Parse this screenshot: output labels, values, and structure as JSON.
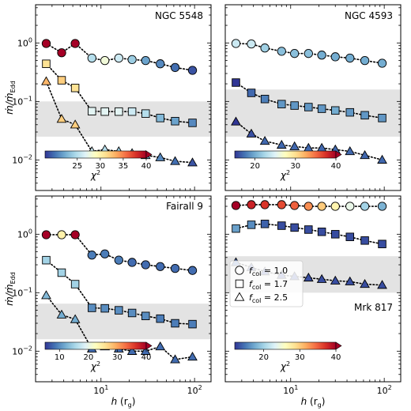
{
  "chart_data": {
    "type": "scatter",
    "shared": {
      "xlabel": "h (r_g)",
      "xlabel_main": "h",
      "xlabel_unit": "(r",
      "xlabel_sub": "g",
      "xlabel_close": ")",
      "ylabel_main": "ṁ/ṁ",
      "ylabel_sub": "Edd",
      "xscale": "log",
      "yscale": "log",
      "xlim": [
        2.0,
        150
      ],
      "ylim": [
        0.003,
        4.5
      ],
      "x_ticks": [
        {
          "value": 10,
          "label": "10",
          "sup": "1"
        },
        {
          "value": 100,
          "label": "10",
          "sup": "2"
        }
      ],
      "y_ticks": [
        {
          "value": 0.01,
          "label": "10",
          "sup": "−2"
        },
        {
          "value": 0.1,
          "label": "10",
          "sup": "−1"
        },
        {
          "value": 1,
          "label": "10",
          "sup": "0"
        }
      ],
      "colormap": "RdYlBu_r",
      "colorbar_label": "χ",
      "colorbar_label_sup": "2",
      "marker_legend": [
        {
          "marker": "circle",
          "prefix": "f",
          "sub": "col",
          "text": " = 1.0"
        },
        {
          "marker": "square",
          "prefix": "f",
          "sub": "col",
          "text": " = 1.7"
        },
        {
          "marker": "triangle",
          "prefix": "f",
          "sub": "col",
          "text": " = 2.5"
        }
      ]
    },
    "panels": [
      {
        "title": "NGC 5548",
        "band": [
          0.025,
          0.1
        ],
        "colorbar": {
          "min": 18,
          "max": 40,
          "ticks": [
            25,
            30,
            35,
            40
          ]
        },
        "x": [
          2.6,
          3.8,
          5.3,
          8.0,
          11.0,
          15.5,
          21.5,
          30.0,
          43.0,
          62.0,
          95.0
        ],
        "series": [
          {
            "marker": "circle",
            "y": [
              0.98,
              0.68,
              0.98,
              0.55,
              0.5,
              0.55,
              0.52,
              0.5,
              0.44,
              0.38,
              0.34
            ],
            "chi2": [
              40,
              40,
              40,
              25,
              28,
              26,
              24,
              22,
              21,
              20,
              19
            ]
          },
          {
            "marker": "square",
            "y": [
              0.44,
              0.23,
              0.17,
              0.068,
              0.067,
              0.067,
              0.067,
              0.062,
              0.052,
              0.046,
              0.043
            ],
            "chi2": [
              31,
              32,
              31,
              27,
              27,
              27,
              26,
              25,
              23,
              22,
              21
            ]
          },
          {
            "marker": "triangle",
            "y": [
              0.22,
              0.05,
              0.04,
              0.014,
              0.015,
              0.014,
              0.013,
              0.012,
              0.011,
              0.0095,
              0.009
            ],
            "chi2": [
              33,
              32,
              32,
              26,
              25,
              24,
              23,
              22,
              21,
              20,
              19
            ]
          }
        ]
      },
      {
        "title": "NGC 4593",
        "band": [
          0.025,
          0.16
        ],
        "colorbar": {
          "min": 15,
          "max": 40,
          "ticks": [
            20,
            30,
            40
          ]
        },
        "x": [
          2.6,
          3.8,
          5.3,
          8.0,
          11.0,
          15.5,
          21.5,
          30.0,
          43.0,
          62.0,
          95.0
        ],
        "series": [
          {
            "marker": "circle",
            "y": [
              0.98,
              0.96,
              0.82,
              0.72,
              0.66,
              0.66,
              0.62,
              0.58,
              0.55,
              0.5,
              0.45
            ],
            "chi2": [
              24,
              24,
              22,
              21,
              21,
              21,
              20,
              20,
              20,
              20,
              20
            ]
          },
          {
            "marker": "square",
            "y": [
              0.21,
              0.14,
              0.11,
              0.09,
              0.085,
              0.08,
              0.075,
              0.07,
              0.065,
              0.058,
              0.052
            ],
            "chi2": [
              15,
              17,
              18,
              19,
              19,
              19,
              19,
              20,
              19,
              19,
              19
            ]
          },
          {
            "marker": "triangle",
            "y": [
              0.045,
              0.028,
              0.021,
              0.018,
              0.017,
              0.016,
              0.016,
              0.015,
              0.014,
              0.012,
              0.01
            ],
            "chi2": [
              15,
              16,
              17,
              17,
              17,
              17,
              17,
              17,
              17,
              17,
              17
            ]
          }
        ]
      },
      {
        "title": "Fairall 9",
        "band": [
          0.016,
          0.065
        ],
        "colorbar": {
          "min": 5,
          "max": 40,
          "ticks": [
            10,
            20,
            30,
            40
          ]
        },
        "x": [
          2.6,
          3.8,
          5.3,
          8.0,
          11.0,
          15.5,
          21.5,
          30.0,
          43.0,
          62.0,
          95.0
        ],
        "series": [
          {
            "marker": "circle",
            "y": [
              0.98,
              0.98,
              0.98,
              0.44,
              0.46,
              0.36,
              0.33,
              0.3,
              0.28,
              0.26,
              0.24
            ],
            "chi2": [
              40,
              24,
              40,
              9,
              9,
              9,
              8,
              8,
              8,
              8,
              8
            ]
          },
          {
            "marker": "square",
            "y": [
              0.36,
              0.22,
              0.14,
              0.055,
              0.054,
              0.05,
              0.045,
              0.04,
              0.036,
              0.03,
              0.029
            ],
            "chi2": [
              15,
              15,
              15,
              10,
              10,
              10,
              10,
              10,
              9,
              9,
              9
            ]
          },
          {
            "marker": "triangle",
            "y": [
              0.09,
              0.042,
              0.035,
              0.011,
              0.012,
              0.011,
              0.01,
              0.01,
              0.012,
              0.0072,
              0.008
            ],
            "chi2": [
              13,
              12,
              12,
              8,
              8,
              8,
              8,
              8,
              8,
              8,
              8
            ]
          }
        ]
      },
      {
        "title": "Mrk 817",
        "band": [
          0.1,
          0.42
        ],
        "colorbar": {
          "min": 12,
          "max": 40,
          "ticks": [
            20,
            30,
            40
          ]
        },
        "x": [
          2.6,
          3.8,
          5.3,
          8.0,
          11.0,
          15.5,
          21.5,
          30.0,
          43.0,
          62.0,
          95.0
        ],
        "series": [
          {
            "marker": "circle",
            "y": [
              3.1,
              3.2,
              3.2,
              3.2,
              3.1,
              3.0,
              3.0,
              3.0,
              3.0,
              3.0,
              3.0
            ],
            "chi2": [
              40,
              38,
              37,
              36,
              35,
              33,
              30,
              27,
              24,
              20,
              18
            ]
          },
          {
            "marker": "square",
            "y": [
              1.25,
              1.45,
              1.5,
              1.4,
              1.3,
              1.2,
              1.1,
              1.0,
              0.9,
              0.78,
              0.68
            ],
            "chi2": [
              17,
              16,
              14,
              13,
              13,
              13,
              13,
              13,
              13,
              13,
              13
            ]
          },
          {
            "marker": "triangle",
            "y": [
              0.33,
              0.27,
              0.23,
              0.2,
              0.19,
              0.18,
              0.17,
              0.16,
              0.155,
              0.14,
              0.135
            ],
            "chi2": [
              14,
              13,
              13,
              13,
              13,
              13,
              13,
              13,
              13,
              13,
              13
            ]
          }
        ]
      }
    ]
  }
}
